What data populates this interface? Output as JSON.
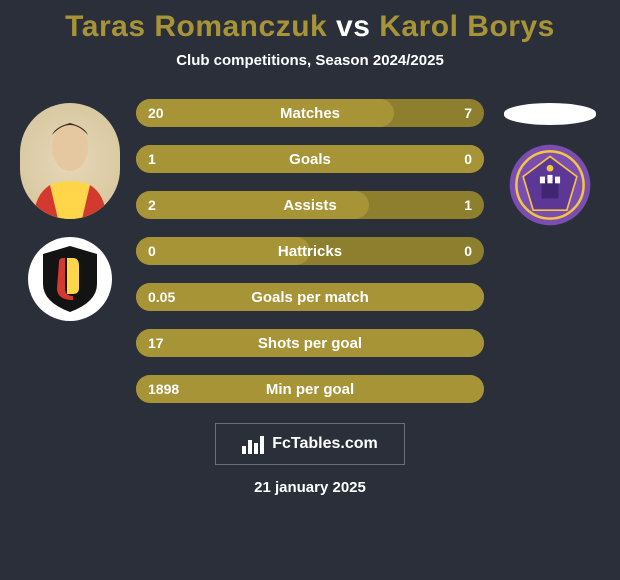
{
  "title": "Taras Romanczuk vs Karol Borys",
  "title_colors": {
    "player1": "#a79437",
    "vs": "#ffffff",
    "player2": "#a79437"
  },
  "subtitle": "Club competitions, Season 2024/2025",
  "background_color": "#2a2f3a",
  "left": {
    "player_photo": {
      "shirt_primary": "#ffd54a",
      "shirt_secondary": "#d33a2f",
      "skin": "#e6c8a0",
      "hair": "#3a2f25"
    },
    "club_badge": {
      "bg": "#ffffff",
      "shield": "#131313",
      "accent": "#d33a2f",
      "letter": "J"
    }
  },
  "right": {
    "player_placeholder_color": "#ffffff",
    "club_badge": {
      "bg": "#7a4db0",
      "ring": "#f4c542",
      "inner": "#5c3796",
      "castle": "#ffffff"
    }
  },
  "stats": {
    "pill": {
      "track_color": "#8d7f2d",
      "fill_color": "#a79437",
      "height": 28,
      "border_radius": 14,
      "text_color": "#ffffff",
      "label_fontsize": 15,
      "value_fontsize": 14,
      "font_weight": 700
    },
    "rows": [
      {
        "label": "Matches",
        "left": "20",
        "right": "7",
        "fill_pct": 74
      },
      {
        "label": "Goals",
        "left": "1",
        "right": "0",
        "fill_pct": 100
      },
      {
        "label": "Assists",
        "left": "2",
        "right": "1",
        "fill_pct": 67
      },
      {
        "label": "Hattricks",
        "left": "0",
        "right": "0",
        "fill_pct": 50
      },
      {
        "label": "Goals per match",
        "left": "0.05",
        "right": "",
        "fill_pct": 100
      },
      {
        "label": "Shots per goal",
        "left": "17",
        "right": "",
        "fill_pct": 100
      },
      {
        "label": "Min per goal",
        "left": "1898",
        "right": "",
        "fill_pct": 100
      }
    ]
  },
  "footer": {
    "logo_text": "FcTables.com",
    "logo_border_color": "#6a6f7a",
    "date": "21 january 2025"
  }
}
